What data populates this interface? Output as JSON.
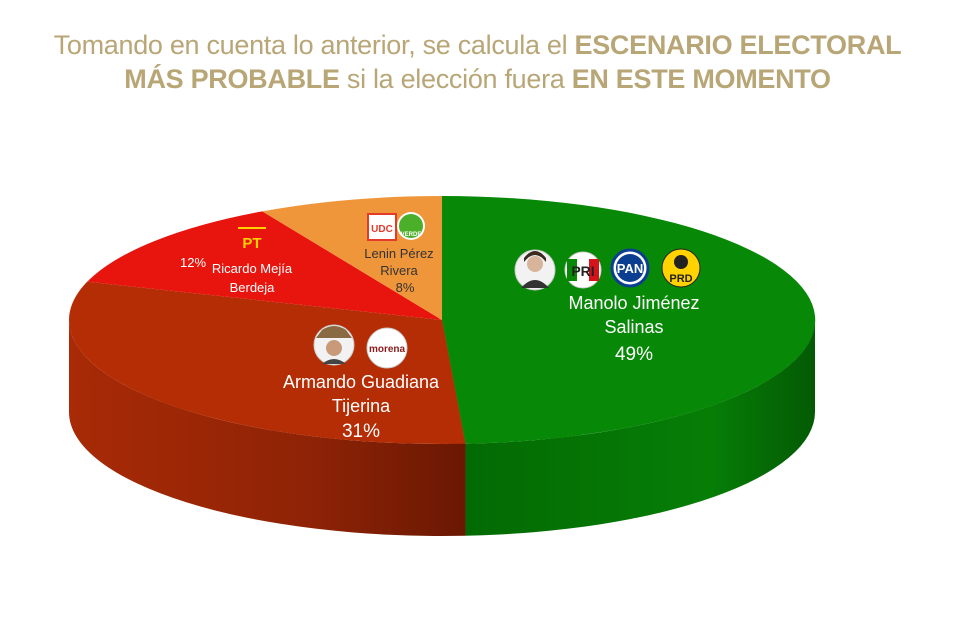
{
  "title": {
    "part1": "Tomando en cuenta lo anterior, se calcula el ",
    "part2": "ESCENARIO ELECTORAL",
    "part3": "MÁS PROBABLE",
    "part4": " si la elección fuera ",
    "part5": "EN ESTE MOMENTO"
  },
  "chart_data": {
    "type": "pie",
    "title": "Tomando en cuenta lo anterior, se calcula el ESCENARIO ELECTORAL MÁS PROBABLE si la elección fuera EN ESTE MOMENTO",
    "slices": [
      {
        "name_line1": "Manolo Jiménez",
        "name_line2": "Salinas",
        "value": 49,
        "label": "49%",
        "color": "#078807",
        "parties": [
          "PRI",
          "PAN",
          "PRD"
        ]
      },
      {
        "name_line1": "Armando Guadiana",
        "name_line2": "Tijerina",
        "value": 31,
        "label": "31%",
        "color": "#b42d05",
        "parties": [
          "morena"
        ]
      },
      {
        "name_line1": "Ricardo Mejía",
        "name_line2": "Berdeja",
        "value": 12,
        "label": "12%",
        "color": "#e8140e",
        "parties": [
          "PT"
        ]
      },
      {
        "name_line1": "Lenin Pérez",
        "name_line2": "Rivera",
        "value": 8,
        "label": "8%",
        "color": "#f0963a",
        "parties": [
          "UDC",
          "VERDE"
        ]
      }
    ]
  },
  "logos": {
    "pri": "PRI",
    "pan": "PAN",
    "prd": "PRD",
    "morena": "morena",
    "pt": "PT",
    "udc": "UDC",
    "verde": "VERDE"
  }
}
